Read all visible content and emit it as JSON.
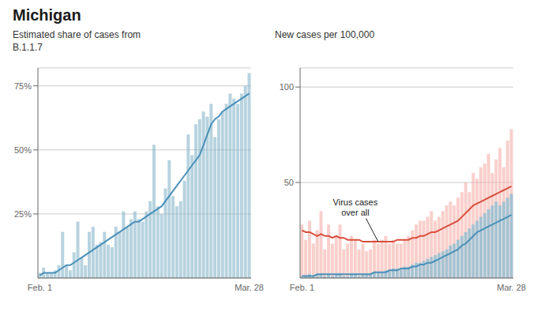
{
  "chart_data": [
    {
      "type": "bar",
      "title": "Michigan",
      "subtitle": "Estimated share of cases from\nB.1.1.7",
      "categories": [
        "Feb. 1",
        null,
        null,
        null,
        null,
        null,
        null,
        null,
        null,
        null,
        null,
        null,
        null,
        null,
        null,
        null,
        null,
        null,
        null,
        null,
        null,
        null,
        null,
        null,
        null,
        null,
        null,
        null,
        null,
        null,
        null,
        null,
        null,
        null,
        null,
        null,
        null,
        null,
        null,
        null,
        null,
        null,
        null,
        null,
        null,
        null,
        null,
        null,
        null,
        null,
        null,
        null,
        null,
        null,
        null,
        "Mar. 28"
      ],
      "series": [
        {
          "type": "bar",
          "color": "#7bafc4",
          "values": [
            2,
            4,
            2,
            2,
            3,
            5,
            18,
            5,
            3,
            10,
            22,
            8,
            5,
            18,
            20,
            13,
            14,
            18,
            13,
            12,
            20,
            18,
            26,
            20,
            23,
            26,
            23,
            22,
            26,
            30,
            52,
            28,
            25,
            35,
            46,
            32,
            28,
            30,
            38,
            56,
            48,
            60,
            62,
            65,
            63,
            68,
            55,
            62,
            65,
            68,
            72,
            70,
            68,
            72,
            75,
            80
          ]
        },
        {
          "type": "line",
          "color": "#4a90b8",
          "values": [
            1,
            2,
            2,
            2,
            2,
            3,
            4,
            5,
            5,
            6,
            7,
            8,
            9,
            10,
            11,
            12,
            13,
            14,
            15,
            16,
            17,
            18,
            19,
            20,
            21,
            22,
            22,
            23,
            24,
            25,
            26,
            27,
            28,
            30,
            32,
            34,
            36,
            38,
            40,
            42,
            44,
            46,
            48,
            52,
            56,
            60,
            62,
            63,
            65,
            66,
            67,
            68,
            69,
            70,
            71,
            72
          ]
        }
      ],
      "ylim": [
        0,
        82
      ],
      "yticks": [
        {
          "value": 25,
          "label": "25%"
        },
        {
          "value": 50,
          "label": "50%"
        },
        {
          "value": 75,
          "label": "75%"
        }
      ],
      "grid": true
    },
    {
      "type": "bar",
      "subtitle": "New cases per 100,000",
      "categories": [
        "Feb. 1",
        null,
        null,
        null,
        null,
        null,
        null,
        null,
        null,
        null,
        null,
        null,
        null,
        null,
        null,
        null,
        null,
        null,
        null,
        null,
        null,
        null,
        null,
        null,
        null,
        null,
        null,
        null,
        null,
        null,
        null,
        null,
        null,
        null,
        null,
        null,
        null,
        null,
        null,
        null,
        null,
        null,
        null,
        null,
        null,
        null,
        null,
        null,
        null,
        null,
        null,
        null,
        null,
        null,
        null,
        "Mar. 28"
      ],
      "series": [
        {
          "type": "bar",
          "color": "#f4a7a0",
          "values": [
            28,
            20,
            30,
            18,
            25,
            35,
            15,
            28,
            18,
            22,
            28,
            15,
            18,
            22,
            20,
            15,
            18,
            14,
            15,
            20,
            18,
            20,
            22,
            18,
            20,
            18,
            18,
            20,
            22,
            25,
            28,
            30,
            30,
            32,
            35,
            30,
            32,
            35,
            38,
            40,
            38,
            42,
            45,
            50,
            45,
            55,
            52,
            58,
            60,
            65,
            55,
            62,
            68,
            58,
            72,
            78
          ]
        },
        {
          "type": "bar",
          "color": "#89bdd3",
          "values": [
            1,
            1,
            2,
            1,
            2,
            2,
            1,
            2,
            1,
            2,
            2,
            1,
            1,
            2,
            2,
            1,
            2,
            2,
            2,
            3,
            3,
            3,
            4,
            4,
            5,
            5,
            5,
            6,
            6,
            7,
            8,
            8,
            9,
            10,
            11,
            12,
            13,
            14,
            15,
            17,
            18,
            20,
            22,
            24,
            26,
            28,
            30,
            32,
            34,
            36,
            38,
            40,
            38,
            40,
            42,
            44
          ]
        },
        {
          "type": "line",
          "color": "#d94f3d",
          "values": [
            25,
            24,
            24,
            23,
            22,
            23,
            22,
            22,
            21,
            22,
            21,
            21,
            20,
            20,
            20,
            20,
            19,
            19,
            19,
            19,
            19,
            19,
            19,
            19,
            19,
            20,
            20,
            20,
            20,
            21,
            21,
            22,
            22,
            23,
            24,
            24,
            25,
            26,
            27,
            28,
            29,
            30,
            32,
            34,
            36,
            38,
            39,
            40,
            41,
            42,
            43,
            44,
            45,
            46,
            47,
            48
          ]
        },
        {
          "type": "line",
          "color": "#4a90b8",
          "values": [
            1,
            1,
            1,
            1,
            2,
            2,
            2,
            2,
            2,
            2,
            2,
            2,
            2,
            2,
            2,
            2,
            2,
            2,
            2,
            3,
            3,
            3,
            3,
            4,
            4,
            4,
            5,
            5,
            5,
            6,
            6,
            7,
            7,
            8,
            8,
            9,
            10,
            11,
            12,
            13,
            14,
            15,
            17,
            18,
            20,
            22,
            24,
            25,
            26,
            27,
            28,
            29,
            30,
            31,
            32,
            33
          ]
        }
      ],
      "ylim": [
        0,
        110
      ],
      "yticks": [
        50,
        100
      ],
      "grid": true,
      "annotations": [
        {
          "text": "Virus cases\nover all",
          "x": 20,
          "y": 19,
          "text_x": 14,
          "text_y": 42
        }
      ]
    }
  ]
}
